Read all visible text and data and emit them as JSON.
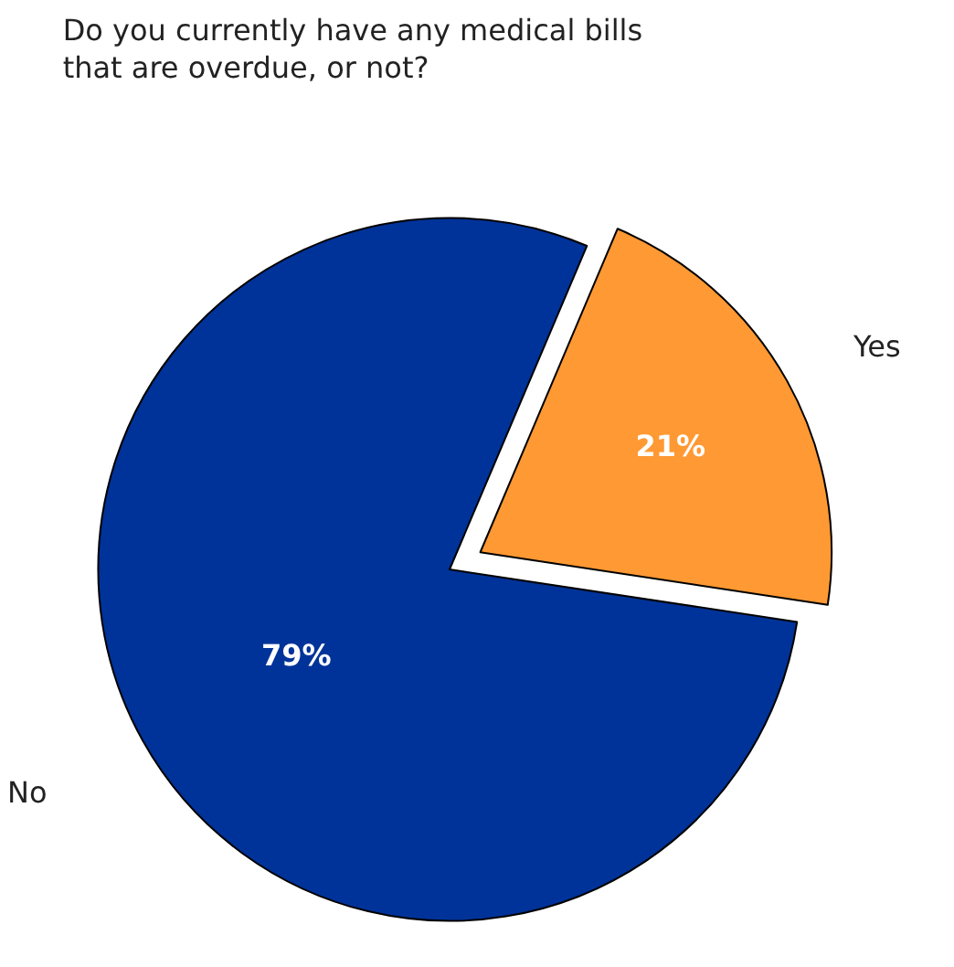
{
  "chart_data": {
    "type": "pie",
    "title": "Do you currently have any medical bills that are overdue, or not?",
    "categories": [
      "Yes",
      "No"
    ],
    "values": [
      21,
      79
    ],
    "colors": [
      "#ff9933",
      "#003399"
    ],
    "value_labels": [
      "21%",
      "79%"
    ],
    "legend": false
  }
}
